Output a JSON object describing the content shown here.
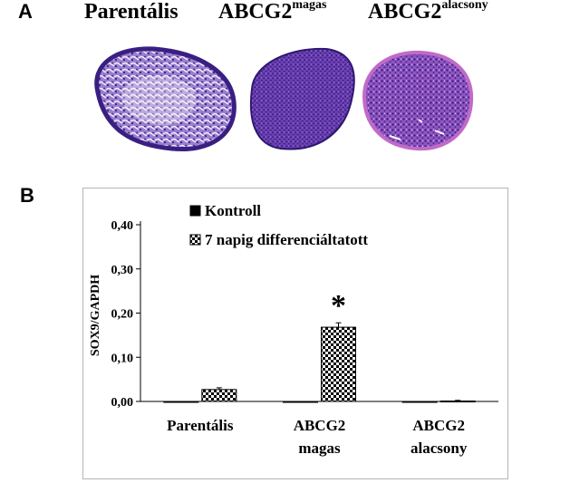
{
  "panels": {
    "a_letter": "A",
    "b_letter": "B"
  },
  "images": {
    "labels": [
      {
        "main": "Parentális",
        "sup": ""
      },
      {
        "main": "ABCG2",
        "sup": "magas"
      },
      {
        "main": "ABCG2",
        "sup": "alacsony"
      }
    ],
    "colors": {
      "stain_dark": "#3a1f82",
      "stain_mid": "#6b3fb2",
      "stain_light": "#b79ad8",
      "stain_pink": "#c06bc8"
    }
  },
  "chart_data": {
    "type": "bar",
    "ylabel": "SOX9/GAPDH",
    "ylim": [
      0,
      0.4
    ],
    "yticks": [
      0,
      0.1,
      0.2,
      0.3,
      0.4
    ],
    "ytick_labels": [
      "0,00",
      "0,10",
      "0,20",
      "0,30",
      "0,40"
    ],
    "categories": [
      {
        "line1": "Parentális",
        "line2": ""
      },
      {
        "line1": "ABCG2",
        "line2": "magas"
      },
      {
        "line1": "ABCG2",
        "line2": "alacsony"
      }
    ],
    "series": [
      {
        "name": "Kontroll",
        "pattern": "solid",
        "values": [
          0.0,
          0.0,
          0.0
        ],
        "errors": [
          0.0,
          0.0,
          0.0
        ]
      },
      {
        "name": "7 napig differenciáltatott",
        "pattern": "checker",
        "values": [
          0.027,
          0.168,
          0.001
        ],
        "errors": [
          0.004,
          0.01,
          0.0015
        ]
      }
    ],
    "significance": [
      {
        "category_index": 1,
        "series_index": 1,
        "symbol": "*"
      }
    ],
    "legend_position": "top-left"
  }
}
